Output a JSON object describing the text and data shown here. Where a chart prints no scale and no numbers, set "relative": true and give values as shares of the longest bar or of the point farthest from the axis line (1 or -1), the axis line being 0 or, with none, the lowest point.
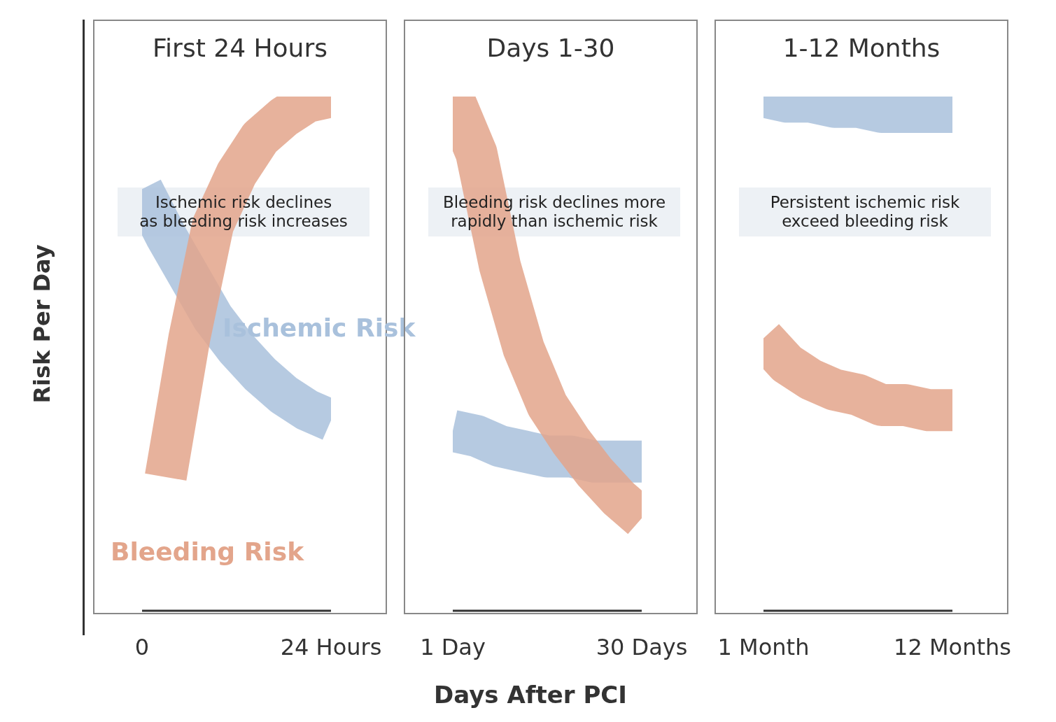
{
  "chart_data": [
    {
      "type": "line",
      "relative": true,
      "title": "First 24 Hours",
      "ylabel": "Risk Per Day",
      "marker": "none",
      "legend": false,
      "categories": [
        "0",
        null,
        null,
        null,
        null,
        null,
        null,
        null,
        "24 Hours"
      ],
      "annotations": [
        "Ischemic risk declines\nas bleeding risk increases"
      ],
      "series": [
        {
          "name": "Ischemic Risk",
          "color": "#a9c1dc",
          "values": [
            0.82,
            0.73,
            0.65,
            0.57,
            0.51,
            0.46,
            0.42,
            0.39,
            0.37
          ]
        },
        {
          "name": "Bleeding Risk",
          "color": "#e3a58b",
          "values": [
            null,
            0.26,
            0.53,
            0.75,
            0.85,
            0.92,
            0.96,
            0.99,
            1
          ]
        }
      ]
    },
    {
      "type": "line",
      "relative": true,
      "title": "Days 1-30",
      "xlabel": "Days After PCI",
      "marker": "none",
      "legend": false,
      "categories": [
        "1 Day",
        null,
        null,
        null,
        null,
        null,
        null,
        null,
        "30 Days"
      ],
      "annotations": [
        "Bleeding risk declines more\nrapidly than ischemic risk"
      ],
      "series": [
        {
          "color": "#a9c1dc",
          "values": [
            0.35,
            0.34,
            0.32,
            0.31,
            0.3,
            0.3,
            0.29,
            0.29,
            0.29
          ]
        },
        {
          "color": "#e3a58b",
          "values": [
            1,
            0.89,
            0.67,
            0.51,
            0.4,
            0.33,
            0.27,
            0.22,
            0.18
          ]
        }
      ]
    },
    {
      "type": "line",
      "relative": true,
      "title": "1-12 Months",
      "marker": "none",
      "legend": false,
      "categories": [
        "1 Month",
        null,
        null,
        null,
        null,
        null,
        null,
        null,
        "12 Months"
      ],
      "annotations": [
        "Persistent ischemic risk\nexceed bleeding risk"
      ],
      "series": [
        {
          "color": "#a9c1dc",
          "values": [
            1,
            0.99,
            0.99,
            0.98,
            0.98,
            0.97,
            0.97,
            0.97,
            0.97
          ]
        },
        {
          "color": "#e3a58b",
          "values": [
            0.53,
            0.48,
            0.45,
            0.43,
            0.42,
            0.4,
            0.4,
            0.39,
            0.39
          ]
        }
      ]
    }
  ]
}
